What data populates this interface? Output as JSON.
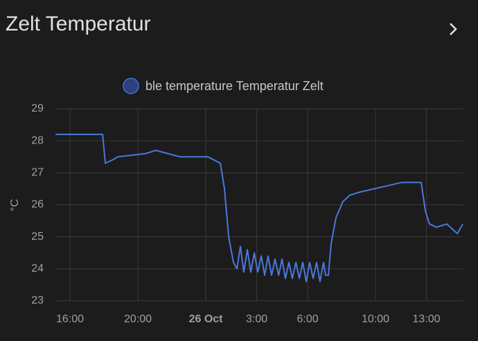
{
  "chart_data": {
    "type": "line",
    "title": "Zelt Temperatur",
    "y_label": "°C",
    "x": [
      -8.86,
      -6.08,
      -5.92,
      -5.51,
      -5.18,
      -3.55,
      -2.94,
      -1.51,
      0.12,
      0.86,
      1.1,
      1.35,
      1.63,
      1.84,
      2.04,
      2.24,
      2.45,
      2.65,
      2.86,
      3.06,
      3.27,
      3.47,
      3.67,
      3.88,
      4.08,
      4.29,
      4.49,
      4.69,
      4.9,
      5.1,
      5.31,
      5.51,
      5.71,
      5.92,
      6.12,
      6.33,
      6.53,
      6.73,
      6.94,
      7.06,
      7.22,
      7.39,
      7.67,
      8.08,
      8.49,
      9.1,
      9.92,
      10.73,
      11.55,
      12.37,
      12.69,
      12.94,
      13.18,
      13.59,
      14.2,
      14.61,
      14.82,
      15.14
    ],
    "series": [
      {
        "name": "ble temperature Temperatur Zelt",
        "color": "#4a78dc",
        "values": [
          28.2,
          28.2,
          27.3,
          27.4,
          27.5,
          27.6,
          27.7,
          27.5,
          27.5,
          27.3,
          26.5,
          25.0,
          24.2,
          24.0,
          24.7,
          23.9,
          24.6,
          23.9,
          24.5,
          23.9,
          24.4,
          23.8,
          24.4,
          23.8,
          24.3,
          23.8,
          24.3,
          23.7,
          24.2,
          23.7,
          24.2,
          23.7,
          24.2,
          23.6,
          24.2,
          23.7,
          24.2,
          23.6,
          24.2,
          23.8,
          23.8,
          24.8,
          25.6,
          26.1,
          26.3,
          26.4,
          26.5,
          26.6,
          26.7,
          26.7,
          26.7,
          25.8,
          25.4,
          25.3,
          25.4,
          25.2,
          25.1,
          25.4
        ]
      }
    ],
    "xlim": [
      -8.9,
      15.14
    ],
    "xticks": [
      {
        "value": -8,
        "label": "16:00"
      },
      {
        "value": -4,
        "label": "20:00"
      },
      {
        "value": 0,
        "label": "26 Oct"
      },
      {
        "value": 3,
        "label": "3:00"
      },
      {
        "value": 6,
        "label": "6:00"
      },
      {
        "value": 10,
        "label": "10:00"
      },
      {
        "value": 13,
        "label": "13:00"
      }
    ],
    "ylim": [
      23,
      29
    ],
    "yticks": [
      23,
      24,
      25,
      26,
      27,
      28,
      29
    ],
    "grid": true
  }
}
